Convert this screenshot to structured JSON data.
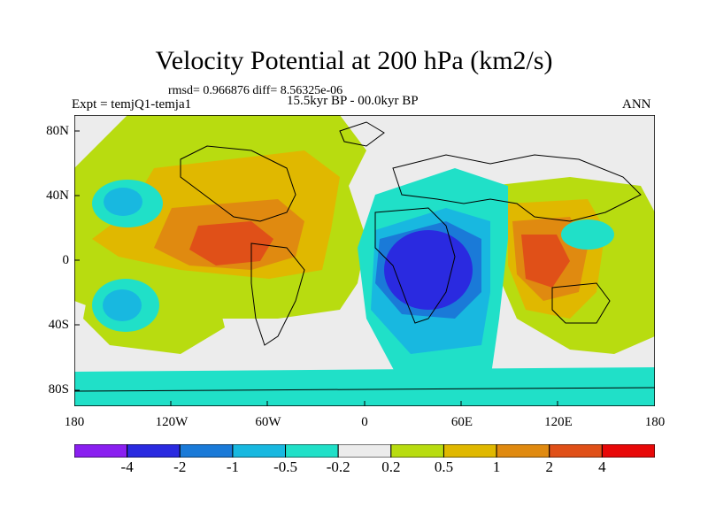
{
  "title": "Velocity Potential at 200 hPa (km2/s)",
  "stats_text": "rmsd= 0.966876 diff= 8.56325e-06",
  "left_label": "Expt = temjQ1-temja1",
  "center_label": "15.5kyr BP - 00.0kyr BP",
  "right_label": "ANN",
  "y_ticks": [
    "80N",
    "40N",
    "0",
    "40S",
    "80S"
  ],
  "x_ticks": [
    "180",
    "120W",
    "60W",
    "0",
    "60E",
    "120E",
    "180"
  ],
  "colorbar": {
    "colors": [
      "#8a1ff0",
      "#2a2ae0",
      "#1a7ad8",
      "#18b8e0",
      "#20e0c8",
      "#ececec",
      "#b8dc10",
      "#e0b800",
      "#e08a10",
      "#e05018",
      "#e80808"
    ],
    "labels": [
      "-4",
      "-2",
      "-1",
      "-0.5",
      "-0.2",
      "0.2",
      "0.5",
      "1",
      "2",
      "4"
    ]
  }
}
